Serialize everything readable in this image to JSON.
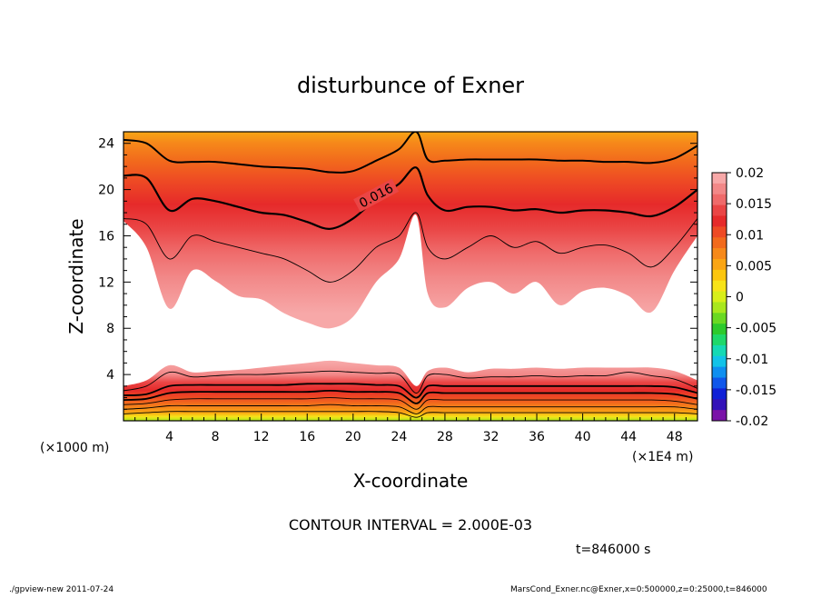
{
  "chart_data": {
    "type": "contour",
    "title": "disturbunce of Exner",
    "xlabel": "X-coordinate",
    "ylabel": "Z-coordinate",
    "x_unit_left": "(×1000 m)",
    "x_unit_right": "(×1E4 m)",
    "xlim": [
      0,
      50
    ],
    "ylim": [
      0,
      25
    ],
    "x_ticks": [
      4,
      8,
      12,
      16,
      20,
      24,
      28,
      32,
      36,
      40,
      44,
      48
    ],
    "y_ticks": [
      4,
      8,
      12,
      16,
      20,
      24
    ],
    "contour_interval_text": "CONTOUR INTERVAL = 2.000E-03",
    "contour_label": "0.016",
    "contour_label_pos": [
      22,
      19.5
    ],
    "time_text": "t=846000 s",
    "colorbar": {
      "labels": [
        "0.02",
        "0.015",
        "0.01",
        "0.005",
        "0",
        "-0.005",
        "-0.01",
        "-0.015",
        "-0.02"
      ],
      "levels": [
        0.02,
        0.015,
        0.01,
        0.005,
        0,
        -0.005,
        -0.01,
        -0.015,
        -0.02
      ],
      "colors": [
        "#f7a8a8",
        "#f28888",
        "#ef6a6a",
        "#ea4545",
        "#e62a2a",
        "#ee4a24",
        "#f26a1c",
        "#f6891a",
        "#faa514",
        "#fcc60e",
        "#f7e318",
        "#d8ef19",
        "#a9e81d",
        "#6ad922",
        "#2dca2c",
        "#1ed86a",
        "#15d9b4",
        "#12c3e8",
        "#0f8ff0",
        "#1057ea",
        "#1020d6",
        "#3312b8",
        "#7a13a8"
      ]
    },
    "upper_region": {
      "x": [
        0,
        2,
        4,
        6,
        8,
        10,
        12,
        14,
        16,
        18,
        20,
        22,
        24,
        25.5,
        26.5,
        28,
        30,
        32,
        34,
        36,
        38,
        40,
        42,
        44,
        46,
        48,
        50
      ],
      "pink_edge": [
        17.3,
        15.0,
        9.7,
        13.0,
        12.1,
        10.8,
        10.5,
        9.3,
        8.5,
        8.0,
        9.0,
        12.0,
        14.0,
        17.8,
        11.0,
        9.8,
        11.5,
        12.0,
        11.0,
        12.0,
        10.0,
        11.2,
        11.5,
        10.8,
        9.4,
        13.0,
        16.0
      ],
      "black_lines": [
        [
          17.5,
          17.0,
          14.0,
          16.0,
          15.5,
          15.0,
          14.5,
          14.0,
          13.0,
          12.0,
          13.0,
          15.0,
          16.0,
          18.0,
          15.0,
          14.0,
          15.0,
          16.0,
          15.0,
          15.5,
          14.5,
          15.0,
          15.2,
          14.5,
          13.3,
          15.0,
          17.5
        ],
        [
          21.2,
          21.0,
          18.2,
          19.2,
          19.0,
          18.5,
          18.0,
          17.8,
          17.2,
          16.6,
          17.5,
          19.2,
          20.5,
          21.9,
          19.5,
          18.2,
          18.5,
          18.5,
          18.2,
          18.3,
          18.0,
          18.2,
          18.2,
          18.0,
          17.7,
          18.5,
          20.0
        ],
        [
          24.3,
          24.0,
          22.5,
          22.4,
          22.4,
          22.2,
          22.0,
          21.9,
          21.8,
          21.5,
          21.6,
          22.5,
          23.5,
          25.0,
          22.6,
          22.5,
          22.6,
          22.6,
          22.6,
          22.6,
          22.5,
          22.5,
          22.4,
          22.4,
          22.3,
          22.7,
          23.8
        ]
      ]
    },
    "lower_region": {
      "x": [
        0,
        2,
        4,
        6,
        8,
        10,
        12,
        14,
        16,
        18,
        20,
        22,
        24,
        25.5,
        26.5,
        28,
        30,
        32,
        34,
        36,
        38,
        40,
        42,
        44,
        46,
        48,
        50
      ],
      "pink_edge": [
        3.0,
        3.5,
        4.8,
        4.2,
        4.3,
        4.4,
        4.6,
        4.8,
        5.0,
        5.2,
        5.0,
        4.8,
        4.6,
        3.0,
        4.3,
        4.6,
        4.2,
        4.5,
        4.5,
        4.6,
        4.5,
        4.6,
        4.6,
        4.6,
        4.6,
        4.3,
        3.5
      ],
      "black_lines": [
        [
          2.6,
          3.0,
          4.2,
          3.8,
          3.9,
          4.0,
          4.0,
          4.1,
          4.2,
          4.3,
          4.2,
          4.1,
          4.0,
          2.4,
          3.9,
          4.0,
          3.7,
          3.8,
          3.8,
          3.9,
          3.8,
          3.9,
          3.9,
          4.2,
          3.9,
          3.6,
          2.8
        ],
        [
          2.2,
          2.3,
          3.0,
          3.1,
          3.1,
          3.1,
          3.1,
          3.1,
          3.2,
          3.2,
          3.2,
          3.1,
          3.0,
          2.0,
          3.0,
          3.0,
          3.0,
          3.0,
          3.0,
          3.0,
          3.0,
          3.0,
          3.0,
          3.0,
          3.0,
          2.9,
          2.4
        ],
        [
          1.8,
          1.9,
          2.4,
          2.5,
          2.5,
          2.5,
          2.5,
          2.5,
          2.5,
          2.6,
          2.5,
          2.5,
          2.4,
          1.5,
          2.4,
          2.4,
          2.4,
          2.4,
          2.4,
          2.4,
          2.4,
          2.4,
          2.4,
          2.4,
          2.4,
          2.3,
          1.9
        ],
        [
          1.4,
          1.5,
          1.8,
          1.9,
          1.9,
          1.9,
          1.9,
          1.9,
          1.9,
          2.0,
          1.9,
          1.9,
          1.8,
          1.0,
          1.8,
          1.8,
          1.8,
          1.8,
          1.8,
          1.8,
          1.8,
          1.8,
          1.8,
          1.8,
          1.8,
          1.7,
          1.4
        ],
        [
          1.0,
          1.1,
          1.3,
          1.3,
          1.3,
          1.3,
          1.3,
          1.3,
          1.3,
          1.4,
          1.3,
          1.3,
          1.2,
          0.6,
          1.2,
          1.2,
          1.2,
          1.2,
          1.2,
          1.2,
          1.2,
          1.2,
          1.2,
          1.2,
          1.2,
          1.2,
          1.0
        ],
        [
          0.6,
          0.7,
          0.8,
          0.8,
          0.8,
          0.8,
          0.8,
          0.8,
          0.8,
          0.8,
          0.8,
          0.8,
          0.7,
          0.3,
          0.7,
          0.7,
          0.7,
          0.7,
          0.7,
          0.7,
          0.7,
          0.7,
          0.7,
          0.7,
          0.7,
          0.7,
          0.6
        ]
      ]
    },
    "footer_left": "./gpview-new   2011-07-24",
    "footer_right": "MarsCond_Exner.nc@Exner,x=0:500000,z=0:25000,t=846000"
  }
}
